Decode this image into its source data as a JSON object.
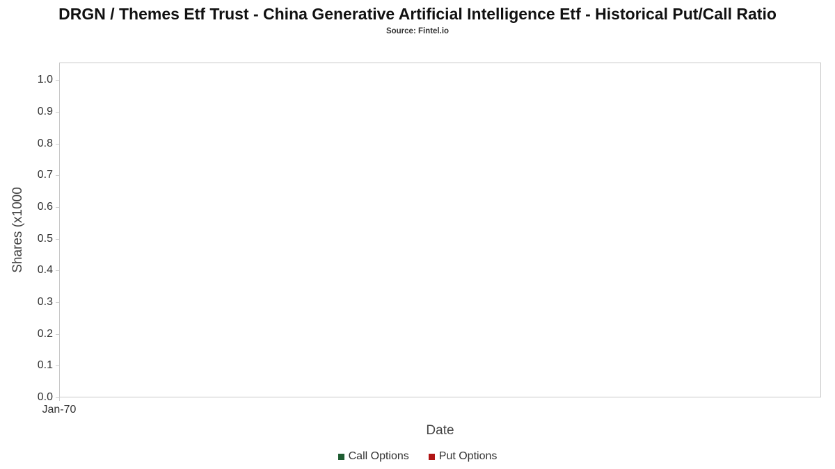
{
  "chart_data": {
    "type": "line",
    "title": "DRGN / Themes Etf Trust - China Generative Artificial Intelligence Etf - Historical Put/Call Ratio",
    "subtitle": "Source: Fintel.io",
    "xlabel": "Date",
    "ylabel": "Shares (x1000",
    "x_ticks": [
      "Jan-70"
    ],
    "y_ticks": [
      "1.0",
      "0.9",
      "0.8",
      "0.7",
      "0.6",
      "0.5",
      "0.4",
      "0.3",
      "0.2",
      "0.1",
      "0.0"
    ],
    "ylim": [
      0,
      1.055
    ],
    "grid": false,
    "legend_position": "bottom",
    "series": [
      {
        "name": "Call Options",
        "color": "#1e5c31",
        "values": []
      },
      {
        "name": "Put Options",
        "color": "#b01414",
        "values": []
      }
    ]
  },
  "legend": {
    "items": [
      {
        "label": "Call Options",
        "color": "#1e5c31"
      },
      {
        "label": "Put Options",
        "color": "#b01414"
      }
    ]
  }
}
